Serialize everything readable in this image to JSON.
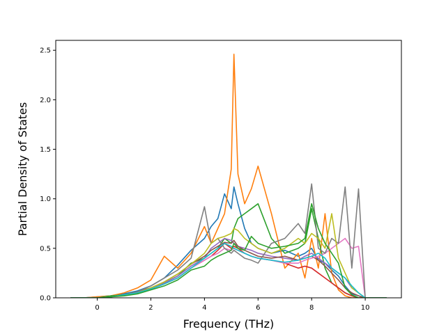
{
  "chart_data": {
    "type": "line",
    "title": "",
    "xlabel": "Frequency (THz)",
    "ylabel": "Partial Density of States",
    "xlim": [
      -1.55,
      11.35
    ],
    "ylim": [
      0.0,
      2.6
    ],
    "xticks": [
      0,
      2,
      4,
      6,
      8,
      10
    ],
    "xtick_labels": [
      "0",
      "2",
      "4",
      "6",
      "8",
      "10"
    ],
    "yticks": [
      0.0,
      0.5,
      1.0,
      1.5,
      2.0,
      2.5
    ],
    "ytick_labels": [
      "0.0",
      "0.5",
      "1.0",
      "1.5",
      "2.0",
      "2.5"
    ],
    "grid": false,
    "legend": "none",
    "x": [
      -1.0,
      -0.5,
      0.0,
      0.5,
      1.0,
      1.5,
      2.0,
      2.5,
      3.0,
      3.5,
      4.0,
      4.25,
      4.5,
      4.75,
      5.0,
      5.1,
      5.25,
      5.5,
      5.75,
      6.0,
      6.5,
      7.0,
      7.5,
      7.75,
      8.0,
      8.25,
      8.5,
      8.75,
      9.0,
      9.25,
      9.5,
      9.75,
      10.0,
      10.5,
      10.8
    ],
    "series": [
      {
        "color": "#1f77b4",
        "values": [
          0,
          0,
          0.01,
          0.02,
          0.04,
          0.07,
          0.12,
          0.2,
          0.33,
          0.48,
          0.6,
          0.72,
          0.8,
          1.05,
          0.9,
          1.12,
          0.95,
          0.7,
          0.55,
          0.5,
          0.45,
          0.48,
          0.42,
          0.45,
          0.5,
          0.38,
          0.35,
          0.28,
          0.22,
          0.12,
          0.04,
          0.02,
          0,
          0,
          0
        ]
      },
      {
        "color": "#ff7f0e",
        "values": [
          0,
          0,
          0.01,
          0.02,
          0.05,
          0.1,
          0.18,
          0.42,
          0.3,
          0.45,
          0.72,
          0.55,
          0.7,
          0.85,
          1.3,
          2.46,
          1.25,
          0.95,
          1.1,
          1.33,
          0.85,
          0.3,
          0.45,
          0.2,
          0.6,
          0.3,
          0.85,
          0.25,
          0.08,
          0.02,
          0,
          0,
          0,
          0,
          0
        ]
      },
      {
        "color": "#2ca02c",
        "values": [
          0,
          0,
          0.0,
          0.02,
          0.03,
          0.06,
          0.1,
          0.15,
          0.22,
          0.35,
          0.4,
          0.45,
          0.5,
          0.6,
          0.55,
          0.7,
          0.8,
          0.85,
          0.9,
          0.95,
          0.6,
          0.45,
          0.5,
          0.55,
          0.9,
          0.6,
          0.3,
          0.15,
          0.1,
          0.05,
          0.02,
          0,
          0,
          0,
          0
        ]
      },
      {
        "color": "#d62728",
        "values": [
          0,
          0,
          0.0,
          0.01,
          0.03,
          0.05,
          0.09,
          0.14,
          0.2,
          0.3,
          0.38,
          0.42,
          0.48,
          0.55,
          0.5,
          0.52,
          0.5,
          0.45,
          0.42,
          0.4,
          0.38,
          0.35,
          0.3,
          0.32,
          0.3,
          0.25,
          0.2,
          0.15,
          0.1,
          0.05,
          0.02,
          0,
          0,
          0,
          0
        ]
      },
      {
        "color": "#9467bd",
        "values": [
          0,
          0,
          0.0,
          0.01,
          0.03,
          0.05,
          0.09,
          0.15,
          0.22,
          0.32,
          0.4,
          0.5,
          0.55,
          0.6,
          0.58,
          0.55,
          0.52,
          0.5,
          0.48,
          0.45,
          0.42,
          0.4,
          0.38,
          0.42,
          0.45,
          0.4,
          0.35,
          0.3,
          0.25,
          0.2,
          0.1,
          0.05,
          0,
          0,
          0
        ]
      },
      {
        "color": "#8c564b",
        "values": [
          0,
          0,
          0.0,
          0.01,
          0.03,
          0.06,
          0.1,
          0.16,
          0.24,
          0.34,
          0.42,
          0.48,
          0.52,
          0.56,
          0.55,
          0.58,
          0.52,
          0.48,
          0.45,
          0.42,
          0.4,
          0.42,
          0.38,
          0.4,
          0.42,
          0.38,
          0.32,
          0.25,
          0.18,
          0.1,
          0.05,
          0.02,
          0,
          0,
          0
        ]
      },
      {
        "color": "#e377c2",
        "values": [
          0,
          0,
          0.0,
          0.01,
          0.03,
          0.05,
          0.09,
          0.14,
          0.2,
          0.3,
          0.38,
          0.42,
          0.45,
          0.5,
          0.48,
          0.5,
          0.48,
          0.45,
          0.42,
          0.4,
          0.38,
          0.35,
          0.35,
          0.38,
          0.4,
          0.42,
          0.45,
          0.5,
          0.55,
          0.6,
          0.5,
          0.52,
          0.0,
          0,
          0
        ]
      },
      {
        "color": "#7f7f7f",
        "values": [
          0,
          0,
          0.0,
          0.01,
          0.03,
          0.06,
          0.12,
          0.2,
          0.28,
          0.4,
          0.92,
          0.55,
          0.6,
          0.5,
          0.45,
          0.48,
          0.45,
          0.4,
          0.38,
          0.35,
          0.55,
          0.6,
          0.75,
          0.65,
          1.15,
          0.5,
          0.45,
          0.6,
          0.55,
          1.12,
          0.3,
          1.1,
          0.0,
          0,
          0
        ]
      },
      {
        "color": "#bcbd22",
        "values": [
          0,
          0,
          0.0,
          0.01,
          0.03,
          0.05,
          0.1,
          0.16,
          0.24,
          0.34,
          0.45,
          0.55,
          0.6,
          0.62,
          0.65,
          0.7,
          0.68,
          0.6,
          0.55,
          0.5,
          0.45,
          0.5,
          0.6,
          0.55,
          0.65,
          0.6,
          0.5,
          0.85,
          0.4,
          0.25,
          0.1,
          0.05,
          0,
          0,
          0
        ]
      },
      {
        "color": "#17becf",
        "values": [
          0,
          0,
          0.0,
          0.01,
          0.03,
          0.05,
          0.09,
          0.14,
          0.2,
          0.3,
          0.4,
          0.45,
          0.5,
          0.55,
          0.52,
          0.5,
          0.48,
          0.45,
          0.42,
          0.4,
          0.38,
          0.36,
          0.38,
          0.4,
          0.42,
          0.45,
          0.4,
          0.3,
          0.25,
          0.2,
          0.12,
          0.05,
          0,
          0,
          0
        ]
      },
      {
        "color": "#2ca02c",
        "values": [
          0,
          0,
          0.0,
          0.01,
          0.02,
          0.04,
          0.08,
          0.12,
          0.18,
          0.28,
          0.32,
          0.38,
          0.42,
          0.45,
          0.48,
          0.55,
          0.5,
          0.48,
          0.62,
          0.55,
          0.5,
          0.52,
          0.55,
          0.6,
          0.95,
          0.7,
          0.55,
          0.45,
          0.35,
          0.1,
          0.03,
          0.0,
          0,
          0,
          0
        ]
      }
    ]
  }
}
